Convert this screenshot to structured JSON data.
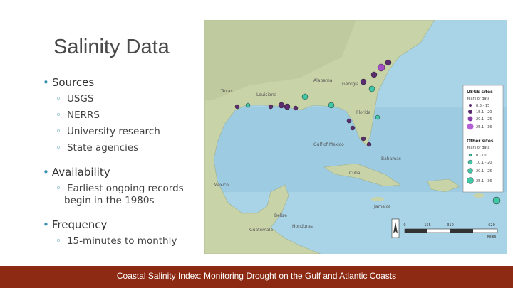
{
  "slide": {
    "title": "Salinity Data",
    "sections": [
      {
        "heading": "Sources",
        "items": [
          "USGS",
          "NERRS",
          "University research",
          "State agencies"
        ]
      },
      {
        "heading": "Availability",
        "items": [
          "Earliest ongoing records begin in the 1980s"
        ]
      },
      {
        "heading": "Frequency",
        "items": [
          "15-minutes to monthly"
        ]
      }
    ],
    "footer": "Coastal Salinity Index: Monitoring Drought on the Gulf and Atlantic Coasts",
    "map": {
      "labels": [
        "Gulf of Mexico",
        "Cuba",
        "Bahamas",
        "Mexico",
        "Jamaica",
        "Belize",
        "Guatemala",
        "Honduras",
        "Florida",
        "Texas",
        "Louisiana",
        "Georgia",
        "Alabama"
      ],
      "legend": {
        "usgs_title": "USGS sites",
        "usgs_subtitle": "Years of data",
        "usgs_classes": [
          "8.3 - 15",
          "15.1 - 20",
          "20.1 - 25",
          "25.1 - 36"
        ],
        "other_title": "Other sites",
        "other_subtitle": "Years of data",
        "other_classes": [
          "0 - 10",
          "10.1 - 20",
          "20.1 - 25",
          "25.1 - 36"
        ]
      },
      "scale": [
        "0",
        "155",
        "310",
        "620",
        "Miles"
      ]
    }
  }
}
